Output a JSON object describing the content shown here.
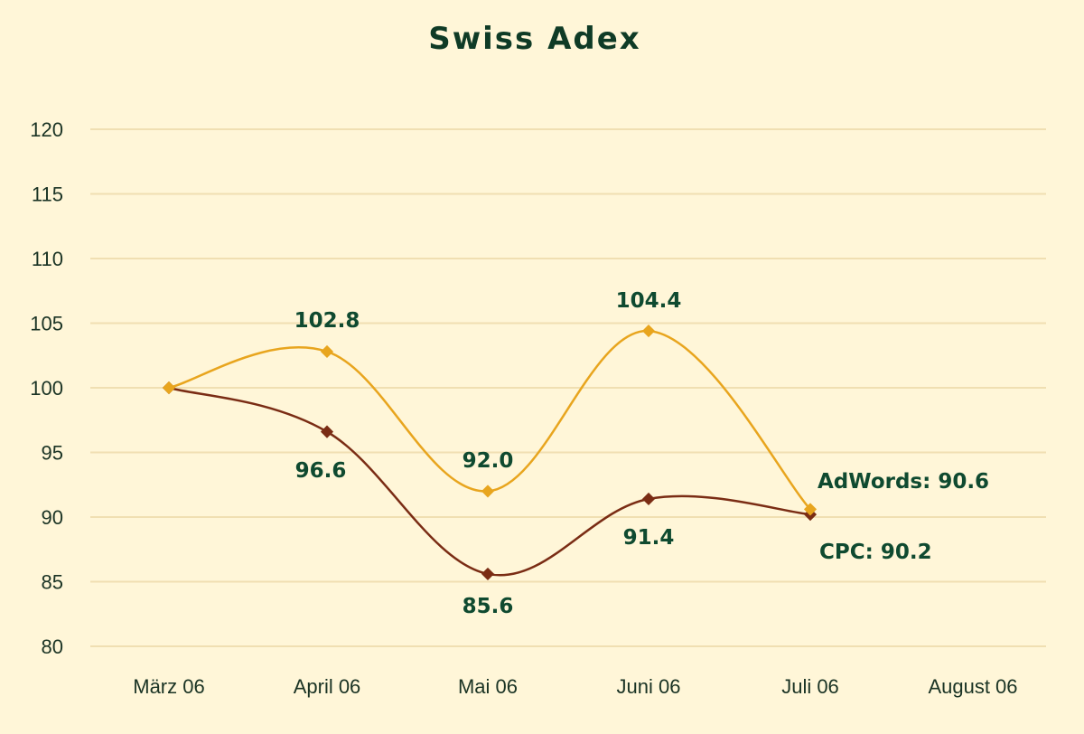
{
  "chart_data": {
    "type": "line",
    "title": "Swiss Adex",
    "xlabel": "",
    "ylabel": "",
    "categories": [
      "März 06",
      "April 06",
      "Mai 06",
      "Juni 06",
      "Juli 06",
      "August 06"
    ],
    "yticks": [
      120,
      115,
      110,
      105,
      100,
      95,
      90,
      85,
      80
    ],
    "ylim": [
      80,
      120
    ],
    "grid": true,
    "legend": "none (end-of-line labels)",
    "series": [
      {
        "name": "AdWords",
        "color": "#e8a51e",
        "values": [
          100.0,
          102.8,
          92.0,
          104.4,
          90.6,
          null
        ],
        "point_labels": [
          null,
          "102.8",
          "92.0",
          "104.4",
          "AdWords: 90.6",
          null
        ]
      },
      {
        "name": "CPC",
        "color": "#7a2c14",
        "values": [
          100.0,
          96.6,
          85.6,
          91.4,
          90.2,
          null
        ],
        "point_labels": [
          null,
          "96.6",
          "85.6",
          "91.4",
          "CPC: 90.2",
          null
        ]
      }
    ]
  },
  "colors": {
    "background": "#fff6d8",
    "gridline": "#f0dfb2",
    "text": "#0f4a30"
  }
}
